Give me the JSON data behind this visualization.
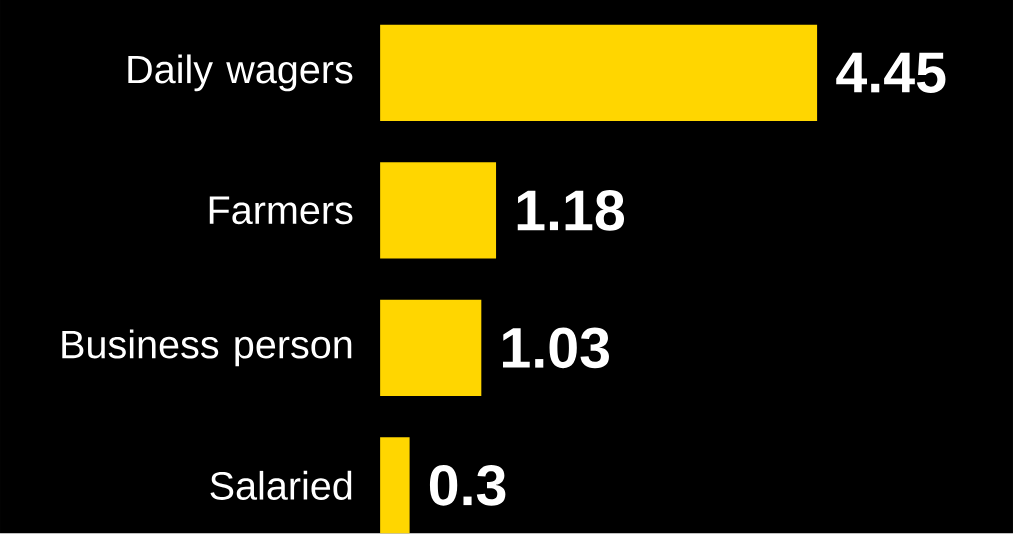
{
  "chart_data": {
    "type": "bar",
    "orientation": "horizontal",
    "categories": [
      "Daily wagers",
      "Farmers",
      "Business person",
      "Salaried"
    ],
    "values": [
      4.45,
      1.18,
      1.03,
      0.3
    ],
    "color": "#ffd600",
    "data_labels": true
  }
}
